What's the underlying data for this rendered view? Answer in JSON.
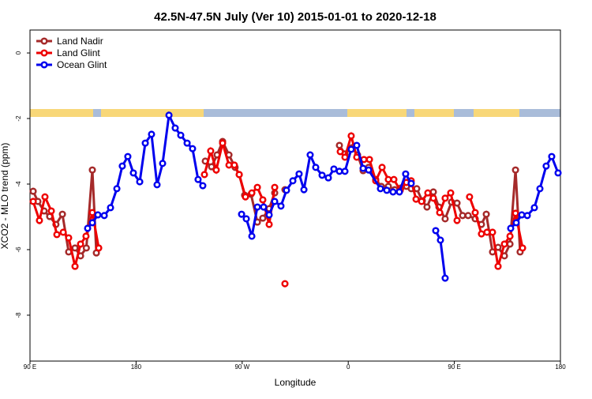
{
  "chart_data": {
    "type": "line",
    "title": "42.5N-47.5N July (Ver 10)   2015-01-01 to 2020-12-18",
    "xlabel": "Longitude",
    "ylabel": "XCO2 - MLO trend (ppm)",
    "xlim": [
      90,
      540
    ],
    "ylim": [
      -9.4,
      0.7
    ],
    "xticks": [
      {
        "value": 90,
        "label": "90 E"
      },
      180,
      {
        "value": 270,
        "label": "90 W"
      },
      {
        "value": 360,
        "label": "0"
      },
      {
        "value": 450,
        "label": "90 E"
      },
      {
        "value": 540,
        "label": "180"
      }
    ],
    "yticks": [
      0,
      -2,
      -4,
      -6,
      -8
    ],
    "legend": "top-left",
    "series": [
      {
        "name": "Land Nadir",
        "color": "#a52a2a",
        "x": [
          92.7,
          96.7,
          102,
          106.7,
          112,
          117.5,
          122.8,
          128.2,
          132.9,
          137.8,
          142.9,
          146.3,
          null,
          238.7,
          244,
          248.7,
          253.4,
          258.8,
          264,
          267.5,
          272.1,
          277.5,
          282.9,
          287.5,
          292.9,
          297.6,
          null,
          306.3,
          null,
          352.5,
          357.2,
          363.2,
          367.9,
          372.6,
          377.3,
          383.3,
          388,
          394,
          399.4,
          404.7,
          409.4,
          413.4,
          418.1,
          422.8,
          426.8,
          432.2,
          436.9,
          442.2,
          447.6,
          452.3,
          457,
          461.7,
          467.7,
          473,
          477.1,
          482.4,
          487.1,
          492.5,
          497.2,
          501.9,
          505.8
        ],
        "values": [
          -4.22,
          -4.53,
          -4.82,
          -4.99,
          -5.23,
          -4.92,
          -6.07,
          -5.95,
          -6.19,
          -5.95,
          -3.57,
          -6.1,
          null,
          -3.3,
          -3.47,
          -3.11,
          -2.7,
          -3.11,
          -3.49,
          -3.71,
          -4.34,
          -4.31,
          -5.16,
          -5.04,
          -4.75,
          -4.27,
          null,
          -4.17,
          null,
          -2.82,
          -3.08,
          -2.89,
          -3.11,
          -3.59,
          -3.49,
          -3.86,
          -4.07,
          -4.07,
          -4.17,
          -4.12,
          -4.07,
          -4.14,
          -4.14,
          -4.51,
          -4.7,
          -4.24,
          -4.7,
          -5.06,
          -4.55,
          -4.58,
          -4.96,
          -4.96,
          -5.06,
          -5.23,
          -4.92,
          -6.07,
          -5.93,
          -6.19,
          -5.83,
          -3.57,
          -6.07
        ]
      },
      {
        "name": "Land Glint",
        "color": "#ee0000",
        "x": [
          92.7,
          98,
          102.7,
          108.1,
          112.8,
          118.2,
          122.8,
          128.2,
          132.9,
          137.5,
          142.9,
          148.3,
          null,
          238,
          243.3,
          248,
          253.4,
          258.8,
          263.4,
          267.5,
          272.8,
          278.2,
          282.9,
          287.5,
          292.9,
          297.6,
          null,
          306.3,
          null,
          353.2,
          357.2,
          362.5,
          367.2,
          373.3,
          378,
          383.3,
          388.7,
          394,
          398.7,
          404.1,
          409.4,
          413.4,
          417.5,
          422.2,
          427.5,
          432.2,
          437.6,
          442.2,
          446.9,
          452.3,
          null,
          462.9,
          467.7,
          473,
          477.7,
          482.4,
          487.1,
          492.5,
          497.2,
          501.9,
          507.9
        ],
        "values": [
          -4.53,
          -5.11,
          -4.39,
          -4.82,
          -5.54,
          -5.47,
          -5.64,
          -6.51,
          -5.83,
          -5.59,
          -4.87,
          -5.95,
          null,
          -3.71,
          -2.99,
          -3.57,
          -2.75,
          -3.42,
          -3.42,
          -3.71,
          -4.39,
          -4.27,
          -4.1,
          -4.48,
          -5.23,
          -4.1,
          null,
          -7.04,
          null,
          -3.01,
          -3.18,
          -2.53,
          -3.18,
          -3.25,
          -3.25,
          -3.9,
          -3.49,
          -3.86,
          -3.86,
          -4.19,
          -3.95,
          -3.9,
          -4.46,
          -4.53,
          -4.27,
          -4.43,
          -4.87,
          -4.43,
          -4.27,
          -5.11,
          null,
          -4.39,
          -4.87,
          -5.52,
          -5.47,
          -5.47,
          -6.51,
          -5.83,
          -5.59,
          -4.89,
          -5.95
        ]
      },
      {
        "name": "Ocean Glint",
        "color": "#0000ee",
        "x": [
          138.9,
          142.9,
          147.6,
          153,
          158.3,
          163.7,
          168.3,
          173,
          177.7,
          183.1,
          187.8,
          193.1,
          197.8,
          202.5,
          207.9,
          213.2,
          217.9,
          223.3,
          227.9,
          232.6,
          236.6,
          null,
          269.5,
          273.5,
          278.2,
          282.9,
          288.2,
          292.9,
          297.6,
          302.9,
          307.6,
          313,
          318.3,
          322.4,
          327.7,
          332.4,
          337.8,
          343.1,
          347.8,
          352.5,
          357.2,
          362.5,
          367.2,
          372.6,
          377.3,
          387.3,
          392.7,
          398,
          403.4,
          408.7,
          413.4,
          null,
          434.2,
          438.2,
          442.2,
          null,
          497.8,
          502.5,
          507.2,
          511.9,
          517.9,
          522.6,
          527.9,
          532.6,
          538
        ],
        "values": [
          -5.35,
          -5.18,
          -4.94,
          -4.96,
          -4.72,
          -4.14,
          -3.45,
          -3.16,
          -3.66,
          -3.93,
          -2.75,
          -2.48,
          -4.02,
          -3.37,
          -1.9,
          -2.29,
          -2.51,
          -2.75,
          -2.92,
          -3.86,
          -4.05,
          null,
          -4.92,
          -5.06,
          -5.59,
          -4.7,
          -4.7,
          -4.94,
          -4.53,
          -4.67,
          -4.19,
          -3.9,
          -3.69,
          -4.17,
          -3.11,
          -3.49,
          -3.73,
          -3.81,
          -3.54,
          -3.61,
          -3.61,
          -2.94,
          -2.82,
          -3.52,
          -3.57,
          -4.14,
          -4.19,
          -4.24,
          -4.24,
          -3.69,
          -3.98,
          null,
          -5.42,
          -5.71,
          -6.87,
          null,
          -5.35,
          -5.18,
          -4.94,
          -4.96,
          -4.72,
          -4.14,
          -3.45,
          -3.16,
          -3.66
        ]
      }
    ]
  }
}
